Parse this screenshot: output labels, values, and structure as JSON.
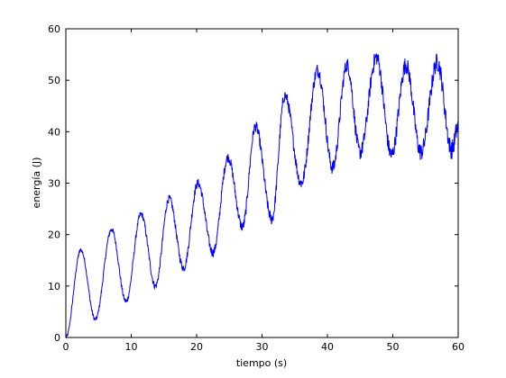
{
  "chart_data": {
    "type": "line",
    "title": "",
    "xlabel": "tiempo (s)",
    "ylabel": "energía (J)",
    "xlim": [
      0,
      60
    ],
    "ylim": [
      0,
      60
    ],
    "xticks": [
      0,
      10,
      20,
      30,
      40,
      50,
      60
    ],
    "yticks": [
      0,
      10,
      20,
      30,
      40,
      50,
      60
    ],
    "grid": false,
    "series": [
      {
        "color": "#0000ff",
        "peaks": [
          [
            2.3,
            17
          ],
          [
            7.0,
            21
          ],
          [
            11.5,
            24
          ],
          [
            15.8,
            27
          ],
          [
            20.2,
            30
          ],
          [
            24.8,
            35
          ],
          [
            29.0,
            41
          ],
          [
            33.5,
            47
          ],
          [
            38.5,
            52
          ],
          [
            43.0,
            53
          ],
          [
            47.5,
            54.5
          ],
          [
            52.0,
            53
          ],
          [
            56.8,
            53.5
          ]
        ],
        "troughs": [
          [
            0,
            0
          ],
          [
            4.5,
            3.5
          ],
          [
            9.2,
            7
          ],
          [
            13.7,
            10
          ],
          [
            18.0,
            13.5
          ],
          [
            22.5,
            16.5
          ],
          [
            27.0,
            21.5
          ],
          [
            31.5,
            23
          ],
          [
            36.0,
            30
          ],
          [
            40.8,
            33
          ],
          [
            45.0,
            36
          ],
          [
            49.8,
            35.5
          ],
          [
            54.3,
            36
          ],
          [
            59.0,
            36.5
          ],
          [
            60,
            41
          ]
        ]
      }
    ]
  }
}
